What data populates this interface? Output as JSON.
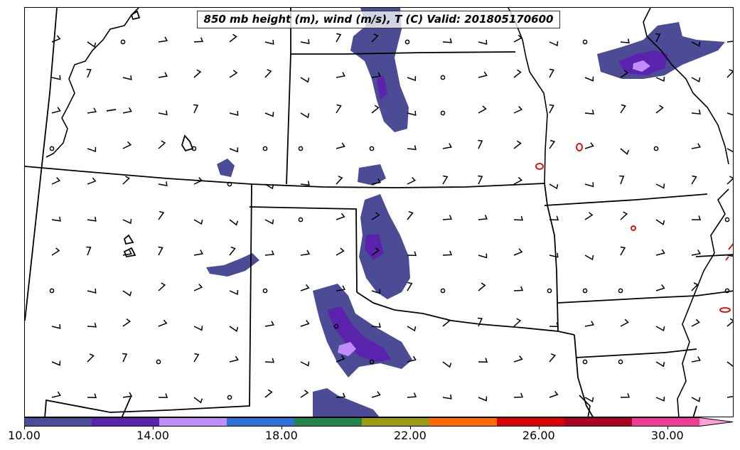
{
  "title": "850 mb height (m), wind (m/s), T (C) Valid: 201805170600",
  "colorbar": {
    "colors": [
      "#4b4b96",
      "#5a22ad",
      "#c18dfa",
      "#2f70d8",
      "#23834a",
      "#9a9a15",
      "#ff6a00",
      "#d90000",
      "#a90024",
      "#eb3c98",
      "#ff9ed7"
    ],
    "tick_labels": [
      "10.00",
      "14.00",
      "18.00",
      "22.00",
      "26.00",
      "30.00"
    ],
    "tick_values": [
      10,
      14,
      18,
      22,
      26,
      30
    ],
    "min": 10,
    "max": 31,
    "extend": "max"
  },
  "map": {
    "fill_colors": {
      "level1": "#4b4b96",
      "level2": "#5a22ad",
      "level3": "#c18dfa"
    },
    "temperature_contour_color": "#e00000",
    "border_color": "#000000"
  }
}
